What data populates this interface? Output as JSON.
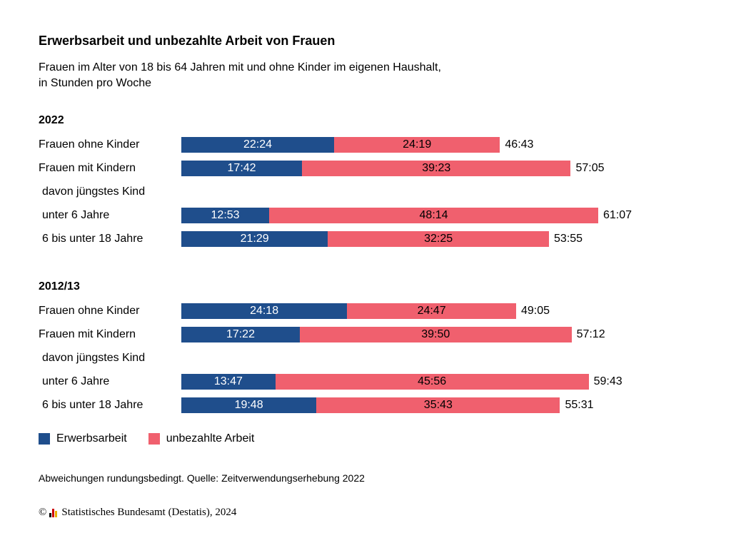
{
  "title": "Erwerbsarbeit und unbezahlte Arbeit von Frauen",
  "subtitle_line1": "Frauen im Alter von 18 bis 64 Jahren mit und ohne Kinder im eigenen Haushalt,",
  "subtitle_line2": "in Stunden pro Woche",
  "colors": {
    "paid": "#1f4e8c",
    "unpaid": "#f0606e"
  },
  "chart_data": {
    "type": "bar",
    "orientation": "horizontal",
    "stacked": true,
    "unit": "hh:mm per week",
    "legend": [
      "Erwerbsarbeit",
      "unbezahlte Arbeit"
    ],
    "groups": [
      {
        "label": "2022",
        "rows": [
          {
            "category": "Frauen ohne Kinder",
            "paid": "22:24",
            "unpaid": "24:19",
            "total": "46:43"
          },
          {
            "category": "Frauen mit Kindern",
            "paid": "17:42",
            "unpaid": "39:23",
            "total": "57:05"
          },
          {
            "category": "davon jüngstes Kind",
            "heading": true
          },
          {
            "category": "unter 6 Jahre",
            "paid": "12:53",
            "unpaid": "48:14",
            "total": "61:07"
          },
          {
            "category": "6 bis unter 18 Jahre",
            "paid": "21:29",
            "unpaid": "32:25",
            "total": "53:55"
          }
        ]
      },
      {
        "label": "2012/13",
        "rows": [
          {
            "category": "Frauen ohne Kinder",
            "paid": "24:18",
            "unpaid": "24:47",
            "total": "49:05"
          },
          {
            "category": "Frauen mit Kindern",
            "paid": "17:22",
            "unpaid": "39:50",
            "total": "57:12"
          },
          {
            "category": "davon jüngstes Kind",
            "heading": true
          },
          {
            "category": "unter 6 Jahre",
            "paid": "13:47",
            "unpaid": "45:56",
            "total": "59:43"
          },
          {
            "category": "6 bis unter 18 Jahre",
            "paid": "19:48",
            "unpaid": "35:43",
            "total": "55:31"
          }
        ]
      }
    ]
  },
  "legend": {
    "paid_label": "Erwerbsarbeit",
    "unpaid_label": "unbezahlte Arbeit"
  },
  "source": "Abweichungen rundungsbedingt. Quelle: Zeitverwendungserhebung 2022",
  "footer": {
    "copyright": "©",
    "org": "Statistisches Bundesamt (Destatis), 2024"
  }
}
